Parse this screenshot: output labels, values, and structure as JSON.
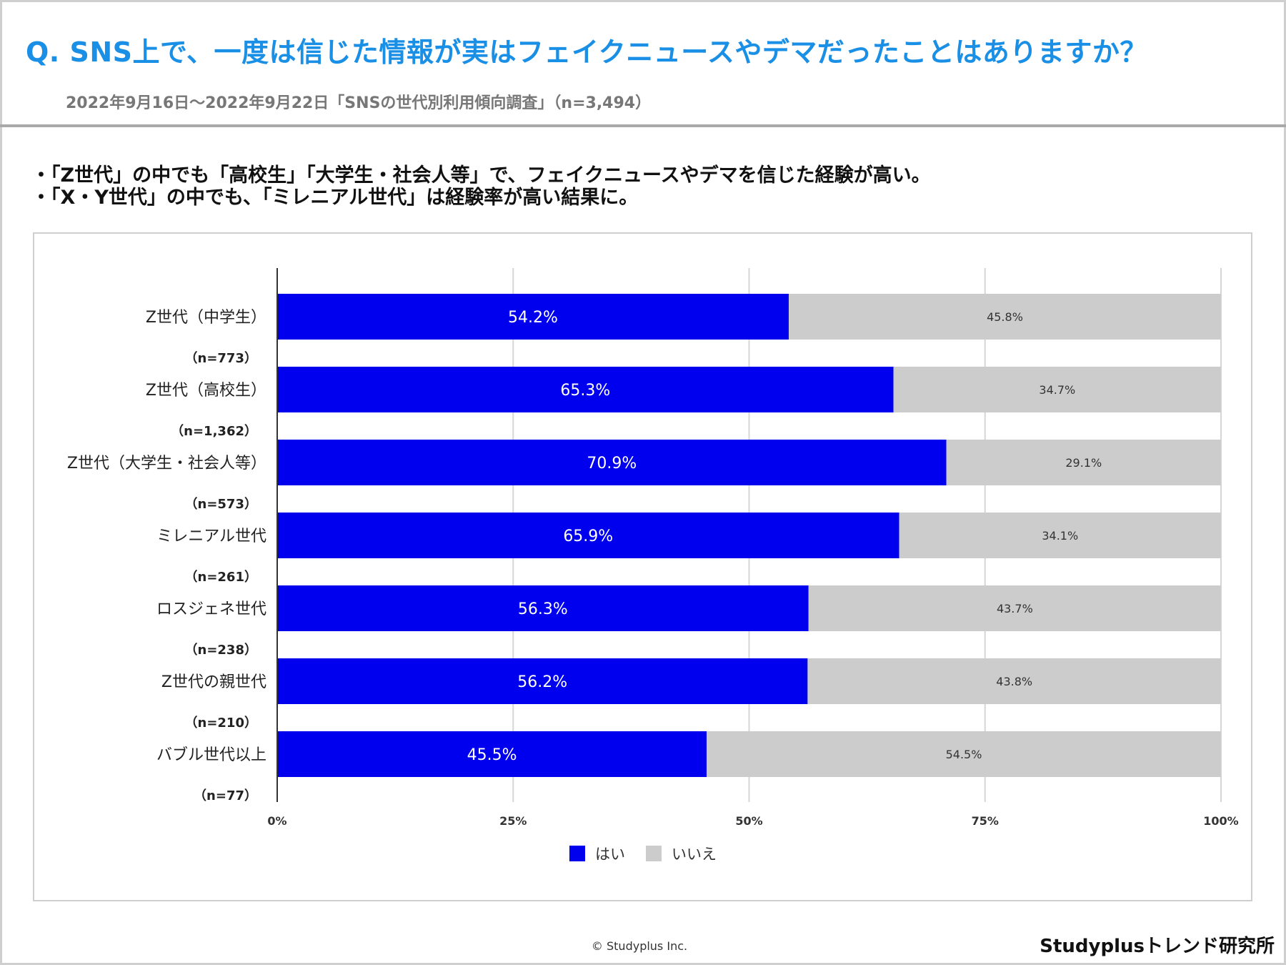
{
  "header": {
    "title": "Q. SNS上で、一度は信じた情報が実はフェイクニュースやデマだったことはありますか？",
    "subtitle": "2022年9月16日〜2022年9月22日「SNSの世代別利用傾向調査」（n=3,494）"
  },
  "bullets": [
    "・「Z世代」の中でも「高校生」「大学生・社会人等」で、フェイクニュースやデマを信じた経験が高い。",
    "・「X・Y世代」の中でも、「ミレニアル世代」は経験率が高い結果に。"
  ],
  "colors": {
    "yes": "#0000ee",
    "no": "#cccccc",
    "grid": "#d6d6d6",
    "axis": "#333333"
  },
  "chart_data": {
    "type": "bar",
    "orientation": "horizontal",
    "stacked": true,
    "categories": [
      {
        "label": "Z世代（中学生）",
        "n": "（n=773）"
      },
      {
        "label": "Z世代（高校生）",
        "n": "（n=1,362）"
      },
      {
        "label": "Z世代（大学生・社会人等）",
        "n": "（n=573）"
      },
      {
        "label": "ミレニアル世代",
        "n": "（n=261）"
      },
      {
        "label": "ロスジェネ世代",
        "n": "（n=238）"
      },
      {
        "label": "Z世代の親世代",
        "n": "（n=210）"
      },
      {
        "label": "バブル世代以上",
        "n": "（n=77）"
      }
    ],
    "series": [
      {
        "name": "はい",
        "values": [
          54.2,
          65.3,
          70.9,
          65.9,
          56.3,
          56.2,
          45.5
        ],
        "labels": [
          "54.2%",
          "65.3%",
          "70.9%",
          "65.9%",
          "56.3%",
          "56.2%",
          "45.5%"
        ]
      },
      {
        "name": "いいえ",
        "values": [
          45.8,
          34.7,
          29.1,
          34.1,
          43.7,
          43.8,
          54.5
        ],
        "labels": [
          "45.8%",
          "34.7%",
          "29.1%",
          "34.1%",
          "43.7%",
          "43.8%",
          "54.5%"
        ]
      }
    ],
    "xlim": [
      0,
      100
    ],
    "xticks": [
      "0%",
      "25%",
      "50%",
      "75%",
      "100%"
    ],
    "grid": true,
    "legend": "bottom-center"
  },
  "footer": {
    "copyright": "© Studyplus Inc.",
    "brand": "Studyplusトレンド研究所"
  }
}
